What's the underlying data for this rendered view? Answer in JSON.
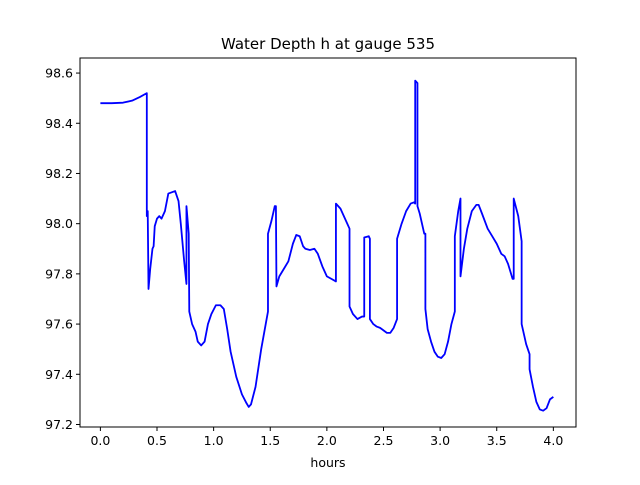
{
  "chart_data": {
    "type": "line",
    "title": "Water Depth h at gauge 535",
    "xlabel": "hours",
    "ylabel": "",
    "xlim": [
      -0.18,
      4.2
    ],
    "ylim": [
      97.19,
      98.66
    ],
    "grid": false,
    "x_ticks": [
      0.0,
      0.5,
      1.0,
      1.5,
      2.0,
      2.5,
      3.0,
      3.5,
      4.0
    ],
    "x_tick_labels": [
      "0.0",
      "0.5",
      "1.0",
      "1.5",
      "2.0",
      "2.5",
      "3.0",
      "3.5",
      "4.0"
    ],
    "y_ticks": [
      97.2,
      97.4,
      97.6,
      97.8,
      98.0,
      98.2,
      98.4,
      98.6
    ],
    "y_tick_labels": [
      "97.2",
      "97.4",
      "97.6",
      "97.8",
      "98.0",
      "98.2",
      "98.4",
      "98.6"
    ],
    "series": [
      {
        "color": "#0000ff",
        "points": [
          [
            0.0,
            98.48
          ],
          [
            0.1,
            98.48
          ],
          [
            0.2,
            98.482
          ],
          [
            0.28,
            98.49
          ],
          [
            0.35,
            98.505
          ],
          [
            0.41,
            98.52
          ],
          [
            0.41,
            98.03
          ],
          [
            0.418,
            98.05
          ],
          [
            0.425,
            97.74
          ],
          [
            0.44,
            97.82
          ],
          [
            0.46,
            97.9
          ],
          [
            0.47,
            97.91
          ],
          [
            0.48,
            97.99
          ],
          [
            0.5,
            98.02
          ],
          [
            0.52,
            98.03
          ],
          [
            0.54,
            98.02
          ],
          [
            0.57,
            98.05
          ],
          [
            0.6,
            98.12
          ],
          [
            0.63,
            98.125
          ],
          [
            0.66,
            98.13
          ],
          [
            0.69,
            98.09
          ],
          [
            0.71,
            98.0
          ],
          [
            0.74,
            97.85
          ],
          [
            0.76,
            97.76
          ],
          [
            0.76,
            98.07
          ],
          [
            0.78,
            97.96
          ],
          [
            0.785,
            97.65
          ],
          [
            0.81,
            97.6
          ],
          [
            0.84,
            97.57
          ],
          [
            0.86,
            97.53
          ],
          [
            0.89,
            97.515
          ],
          [
            0.92,
            97.53
          ],
          [
            0.95,
            97.6
          ],
          [
            0.98,
            97.64
          ],
          [
            1.02,
            97.675
          ],
          [
            1.06,
            97.675
          ],
          [
            1.09,
            97.66
          ],
          [
            1.12,
            97.58
          ],
          [
            1.15,
            97.49
          ],
          [
            1.2,
            97.39
          ],
          [
            1.25,
            97.32
          ],
          [
            1.29,
            97.285
          ],
          [
            1.31,
            97.27
          ],
          [
            1.33,
            97.28
          ],
          [
            1.37,
            97.35
          ],
          [
            1.42,
            97.5
          ],
          [
            1.46,
            97.6
          ],
          [
            1.48,
            97.65
          ],
          [
            1.48,
            97.96
          ],
          [
            1.51,
            98.01
          ],
          [
            1.54,
            98.07
          ],
          [
            1.55,
            98.07
          ],
          [
            1.555,
            97.75
          ],
          [
            1.58,
            97.79
          ],
          [
            1.62,
            97.82
          ],
          [
            1.66,
            97.85
          ],
          [
            1.7,
            97.92
          ],
          [
            1.73,
            97.955
          ],
          [
            1.76,
            97.95
          ],
          [
            1.79,
            97.91
          ],
          [
            1.81,
            97.9
          ],
          [
            1.85,
            97.895
          ],
          [
            1.89,
            97.9
          ],
          [
            1.92,
            97.88
          ],
          [
            1.96,
            97.83
          ],
          [
            2.0,
            97.79
          ],
          [
            2.04,
            97.78
          ],
          [
            2.08,
            97.77
          ],
          [
            2.08,
            98.08
          ],
          [
            2.12,
            98.06
          ],
          [
            2.15,
            98.03
          ],
          [
            2.18,
            98.0
          ],
          [
            2.2,
            97.98
          ],
          [
            2.2,
            97.67
          ],
          [
            2.23,
            97.64
          ],
          [
            2.27,
            97.62
          ],
          [
            2.31,
            97.63
          ],
          [
            2.33,
            97.63
          ],
          [
            2.33,
            97.945
          ],
          [
            2.37,
            97.95
          ],
          [
            2.38,
            97.94
          ],
          [
            2.38,
            97.62
          ],
          [
            2.41,
            97.6
          ],
          [
            2.44,
            97.59
          ],
          [
            2.47,
            97.585
          ],
          [
            2.5,
            97.575
          ],
          [
            2.53,
            97.565
          ],
          [
            2.56,
            97.565
          ],
          [
            2.59,
            97.585
          ],
          [
            2.62,
            97.62
          ],
          [
            2.62,
            97.94
          ],
          [
            2.66,
            98.0
          ],
          [
            2.7,
            98.05
          ],
          [
            2.74,
            98.08
          ],
          [
            2.77,
            98.085
          ],
          [
            2.78,
            98.08
          ],
          [
            2.78,
            98.57
          ],
          [
            2.8,
            98.56
          ],
          [
            2.8,
            98.07
          ],
          [
            2.82,
            98.04
          ],
          [
            2.86,
            97.96
          ],
          [
            2.87,
            97.96
          ],
          [
            2.87,
            97.66
          ],
          [
            2.89,
            97.58
          ],
          [
            2.92,
            97.53
          ],
          [
            2.95,
            97.49
          ],
          [
            2.98,
            97.47
          ],
          [
            3.01,
            97.465
          ],
          [
            3.04,
            97.48
          ],
          [
            3.07,
            97.53
          ],
          [
            3.1,
            97.6
          ],
          [
            3.13,
            97.65
          ],
          [
            3.13,
            97.95
          ],
          [
            3.16,
            98.05
          ],
          [
            3.18,
            98.1
          ],
          [
            3.18,
            97.79
          ],
          [
            3.21,
            97.9
          ],
          [
            3.24,
            97.98
          ],
          [
            3.28,
            98.05
          ],
          [
            3.32,
            98.075
          ],
          [
            3.34,
            98.075
          ],
          [
            3.37,
            98.04
          ],
          [
            3.42,
            97.98
          ],
          [
            3.46,
            97.95
          ],
          [
            3.5,
            97.92
          ],
          [
            3.54,
            97.88
          ],
          [
            3.57,
            97.87
          ],
          [
            3.6,
            97.84
          ],
          [
            3.64,
            97.78
          ],
          [
            3.65,
            97.78
          ],
          [
            3.65,
            98.1
          ],
          [
            3.69,
            98.03
          ],
          [
            3.72,
            97.93
          ],
          [
            3.72,
            97.6
          ],
          [
            3.76,
            97.52
          ],
          [
            3.79,
            97.48
          ],
          [
            3.79,
            97.42
          ],
          [
            3.82,
            97.35
          ],
          [
            3.85,
            97.29
          ],
          [
            3.88,
            97.26
          ],
          [
            3.91,
            97.255
          ],
          [
            3.94,
            97.265
          ],
          [
            3.97,
            97.3
          ],
          [
            4.0,
            97.31
          ]
        ]
      }
    ]
  }
}
